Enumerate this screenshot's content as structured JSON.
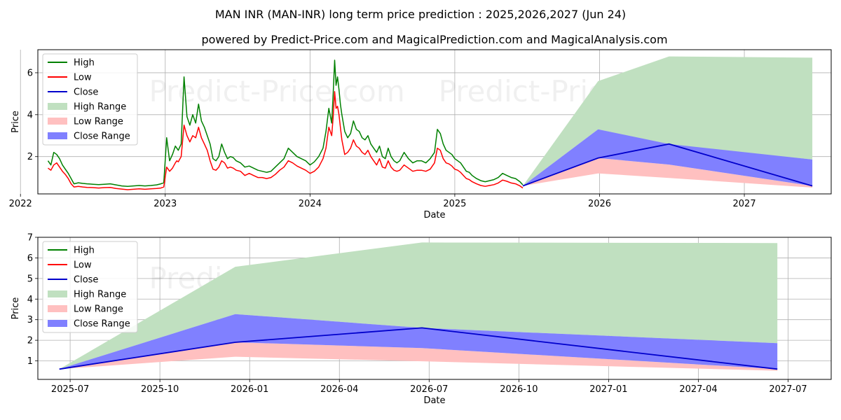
{
  "page": {
    "title": "MAN INR (MAN-INR) long term price prediction : 2025,2026,2027 (Jun 24)",
    "subtitle": "powered by Predict-Price.com and MagicalPrediction.com and MagicalAnalysis.com",
    "watermark": "Predict-Price.com"
  },
  "colors": {
    "high": "#008000",
    "low": "#ff0000",
    "close": "#0000cc",
    "high_range": "#c0e0c0",
    "low_range": "#ffc0c0",
    "close_range": "#8080ff"
  },
  "chart_data": [
    {
      "type": "line",
      "title": "",
      "xlabel": "Date",
      "ylabel": "Price",
      "xlim": [
        2022.12,
        2027.6
      ],
      "ylim": [
        0.22,
        7.1
      ],
      "grid": true,
      "legend_position": "top-left",
      "x_ticks": [
        {
          "value": 2022,
          "label": "2022"
        },
        {
          "value": 2023,
          "label": "2023"
        },
        {
          "value": 2024,
          "label": "2024"
        },
        {
          "value": 2025,
          "label": "2025"
        },
        {
          "value": 2026,
          "label": "2026"
        },
        {
          "value": 2027,
          "label": "2027"
        }
      ],
      "y_ticks": [
        {
          "value": 2,
          "label": "2"
        },
        {
          "value": 4,
          "label": "4"
        },
        {
          "value": 6,
          "label": "6"
        }
      ],
      "legend": [
        "High",
        "Low",
        "Close",
        "High Range",
        "Low Range",
        "Close Range"
      ],
      "history_x": [
        2022.19,
        2022.21,
        2022.23,
        2022.25,
        2022.27,
        2022.29,
        2022.31,
        2022.33,
        2022.35,
        2022.37,
        2022.4,
        2022.43,
        2022.46,
        2022.5,
        2022.54,
        2022.58,
        2022.62,
        2022.66,
        2022.7,
        2022.74,
        2022.78,
        2022.82,
        2022.86,
        2022.9,
        2022.94,
        2022.97,
        2022.99,
        2023.01,
        2023.03,
        2023.05,
        2023.07,
        2023.08,
        2023.09,
        2023.11,
        2023.13,
        2023.15,
        2023.17,
        2023.19,
        2023.21,
        2023.23,
        2023.25,
        2023.27,
        2023.29,
        2023.31,
        2023.33,
        2023.35,
        2023.37,
        2023.39,
        2023.41,
        2023.43,
        2023.45,
        2023.47,
        2023.49,
        2023.52,
        2023.55,
        2023.58,
        2023.61,
        2023.64,
        2023.67,
        2023.7,
        2023.73,
        2023.76,
        2023.79,
        2023.82,
        2023.85,
        2023.88,
        2023.91,
        2023.94,
        2023.97,
        2024.0,
        2024.03,
        2024.06,
        2024.09,
        2024.11,
        2024.13,
        2024.15,
        2024.16,
        2024.17,
        2024.18,
        2024.19,
        2024.2,
        2024.21,
        2024.22,
        2024.24,
        2024.26,
        2024.28,
        2024.3,
        2024.32,
        2024.34,
        2024.36,
        2024.38,
        2024.4,
        2024.42,
        2024.44,
        2024.46,
        2024.48,
        2024.5,
        2024.52,
        2024.54,
        2024.56,
        2024.58,
        2024.6,
        2024.62,
        2024.65,
        2024.68,
        2024.71,
        2024.74,
        2024.77,
        2024.8,
        2024.83,
        2024.86,
        2024.88,
        2024.9,
        2024.92,
        2024.94,
        2024.96,
        2024.98,
        2025.0,
        2025.02,
        2025.04,
        2025.06,
        2025.08,
        2025.1,
        2025.12,
        2025.15,
        2025.18,
        2025.21,
        2025.24,
        2025.27,
        2025.3,
        2025.33,
        2025.36,
        2025.39,
        2025.42,
        2025.45,
        2025.47
      ],
      "series": [
        {
          "name": "High",
          "values": [
            1.8,
            1.6,
            2.2,
            2.1,
            1.9,
            1.6,
            1.4,
            1.2,
            0.95,
            0.7,
            0.75,
            0.72,
            0.7,
            0.68,
            0.66,
            0.68,
            0.7,
            0.65,
            0.6,
            0.58,
            0.6,
            0.62,
            0.6,
            0.62,
            0.65,
            0.7,
            0.75,
            2.9,
            1.8,
            2.1,
            2.5,
            2.4,
            2.3,
            2.6,
            5.8,
            3.9,
            3.5,
            4.0,
            3.6,
            4.5,
            3.7,
            3.4,
            3.0,
            2.6,
            1.9,
            1.8,
            2.0,
            2.6,
            2.2,
            1.9,
            2.0,
            1.95,
            1.8,
            1.7,
            1.5,
            1.55,
            1.45,
            1.35,
            1.3,
            1.25,
            1.3,
            1.5,
            1.7,
            1.9,
            2.4,
            2.2,
            2.0,
            1.9,
            1.8,
            1.6,
            1.75,
            2.0,
            2.4,
            3.2,
            4.3,
            3.6,
            5.0,
            6.6,
            5.4,
            5.8,
            5.2,
            4.5,
            4.0,
            3.2,
            2.9,
            3.1,
            3.7,
            3.3,
            3.2,
            2.9,
            2.8,
            3.0,
            2.6,
            2.4,
            2.2,
            2.5,
            2.0,
            1.9,
            2.4,
            2.0,
            1.8,
            1.7,
            1.8,
            2.2,
            1.9,
            1.7,
            1.8,
            1.8,
            1.7,
            1.9,
            2.2,
            3.3,
            3.1,
            2.6,
            2.3,
            2.2,
            2.1,
            1.9,
            1.8,
            1.7,
            1.5,
            1.3,
            1.25,
            1.1,
            0.95,
            0.85,
            0.8,
            0.85,
            0.9,
            1.0,
            1.2,
            1.1,
            1.0,
            0.95,
            0.8,
            0.65
          ]
        },
        {
          "name": "Low",
          "values": [
            1.45,
            1.35,
            1.6,
            1.7,
            1.5,
            1.3,
            1.15,
            0.95,
            0.7,
            0.55,
            0.58,
            0.55,
            0.53,
            0.52,
            0.5,
            0.52,
            0.53,
            0.48,
            0.45,
            0.42,
            0.44,
            0.46,
            0.44,
            0.46,
            0.48,
            0.5,
            0.55,
            1.5,
            1.3,
            1.45,
            1.7,
            1.8,
            1.75,
            2.0,
            3.5,
            3.0,
            2.7,
            3.0,
            2.9,
            3.4,
            2.9,
            2.6,
            2.3,
            1.8,
            1.4,
            1.35,
            1.5,
            1.8,
            1.7,
            1.45,
            1.5,
            1.45,
            1.35,
            1.3,
            1.1,
            1.2,
            1.1,
            1.0,
            1.0,
            0.95,
            1.0,
            1.15,
            1.35,
            1.5,
            1.8,
            1.7,
            1.55,
            1.45,
            1.35,
            1.2,
            1.3,
            1.5,
            1.9,
            2.4,
            3.4,
            3.0,
            3.9,
            5.1,
            4.3,
            4.4,
            4.0,
            3.4,
            2.8,
            2.1,
            2.2,
            2.4,
            2.8,
            2.5,
            2.4,
            2.2,
            2.1,
            2.3,
            2.0,
            1.8,
            1.6,
            1.9,
            1.5,
            1.45,
            1.8,
            1.5,
            1.35,
            1.3,
            1.35,
            1.6,
            1.45,
            1.3,
            1.35,
            1.35,
            1.3,
            1.4,
            1.7,
            2.4,
            2.3,
            1.9,
            1.7,
            1.65,
            1.55,
            1.4,
            1.35,
            1.25,
            1.1,
            0.95,
            0.9,
            0.8,
            0.7,
            0.62,
            0.58,
            0.62,
            0.66,
            0.74,
            0.88,
            0.82,
            0.74,
            0.7,
            0.6,
            0.5
          ]
        },
        {
          "name": "Close",
          "pred_x": [
            2025.47,
            2025.99,
            2026.48,
            2027.47
          ],
          "pred_values": [
            0.6,
            1.93,
            2.6,
            0.6
          ]
        },
        {
          "name": "High Range",
          "pred_x": [
            2025.47,
            2025.99,
            2026.48,
            2027.47
          ],
          "upper": [
            0.6,
            5.6,
            6.78,
            6.72
          ],
          "lower": [
            0.6,
            3.3,
            2.55,
            1.86
          ]
        },
        {
          "name": "Low Range",
          "pred_x": [
            2025.47,
            2025.99,
            2026.48,
            2027.47
          ],
          "upper": [
            0.6,
            1.93,
            1.62,
            0.6
          ],
          "lower": [
            0.6,
            1.2,
            0.98,
            0.52
          ]
        },
        {
          "name": "Close Range",
          "pred_x": [
            2025.47,
            2025.99,
            2026.48,
            2027.47
          ],
          "upper": [
            0.6,
            3.3,
            2.6,
            1.86
          ],
          "lower": [
            0.6,
            1.93,
            1.62,
            0.6
          ]
        }
      ]
    },
    {
      "type": "line",
      "title": "",
      "xlabel": "Date",
      "ylabel": "Price",
      "xlim": [
        2025.41,
        2027.62
      ],
      "ylim": [
        0.1,
        7.0
      ],
      "grid": true,
      "legend_position": "top-left",
      "x_ticks": [
        {
          "value": 2025.5,
          "label": "2025-07"
        },
        {
          "value": 2025.75,
          "label": "2025-10"
        },
        {
          "value": 2026.0,
          "label": "2026-01"
        },
        {
          "value": 2026.25,
          "label": "2026-04"
        },
        {
          "value": 2026.5,
          "label": "2026-07"
        },
        {
          "value": 2026.75,
          "label": "2026-10"
        },
        {
          "value": 2027.0,
          "label": "2027-01"
        },
        {
          "value": 2027.25,
          "label": "2027-04"
        },
        {
          "value": 2027.5,
          "label": "2027-07"
        }
      ],
      "y_ticks": [
        {
          "value": 1,
          "label": "1"
        },
        {
          "value": 2,
          "label": "2"
        },
        {
          "value": 3,
          "label": "3"
        },
        {
          "value": 4,
          "label": "4"
        },
        {
          "value": 5,
          "label": "5"
        },
        {
          "value": 6,
          "label": "6"
        },
        {
          "value": 7,
          "label": "7"
        }
      ],
      "legend": [
        "High",
        "Low",
        "Close",
        "High Range",
        "Low Range",
        "Close Range"
      ],
      "series": [
        {
          "name": "Close",
          "pred_x": [
            2025.47,
            2025.96,
            2026.48,
            2027.47
          ],
          "pred_values": [
            0.6,
            1.9,
            2.6,
            0.6
          ]
        },
        {
          "name": "High Range",
          "pred_x": [
            2025.47,
            2025.96,
            2026.48,
            2027.47
          ],
          "upper": [
            0.6,
            5.57,
            6.75,
            6.72
          ],
          "lower": [
            0.6,
            3.27,
            2.6,
            1.86
          ]
        },
        {
          "name": "Low Range",
          "pred_x": [
            2025.47,
            2025.96,
            2026.48,
            2027.47
          ],
          "upper": [
            0.6,
            1.9,
            1.62,
            0.6
          ],
          "lower": [
            0.6,
            1.2,
            0.98,
            0.52
          ]
        },
        {
          "name": "Close Range",
          "pred_x": [
            2025.47,
            2025.96,
            2026.48,
            2027.47
          ],
          "upper": [
            0.6,
            3.27,
            2.6,
            1.86
          ],
          "lower": [
            0.6,
            1.9,
            1.62,
            0.6
          ]
        }
      ]
    }
  ]
}
